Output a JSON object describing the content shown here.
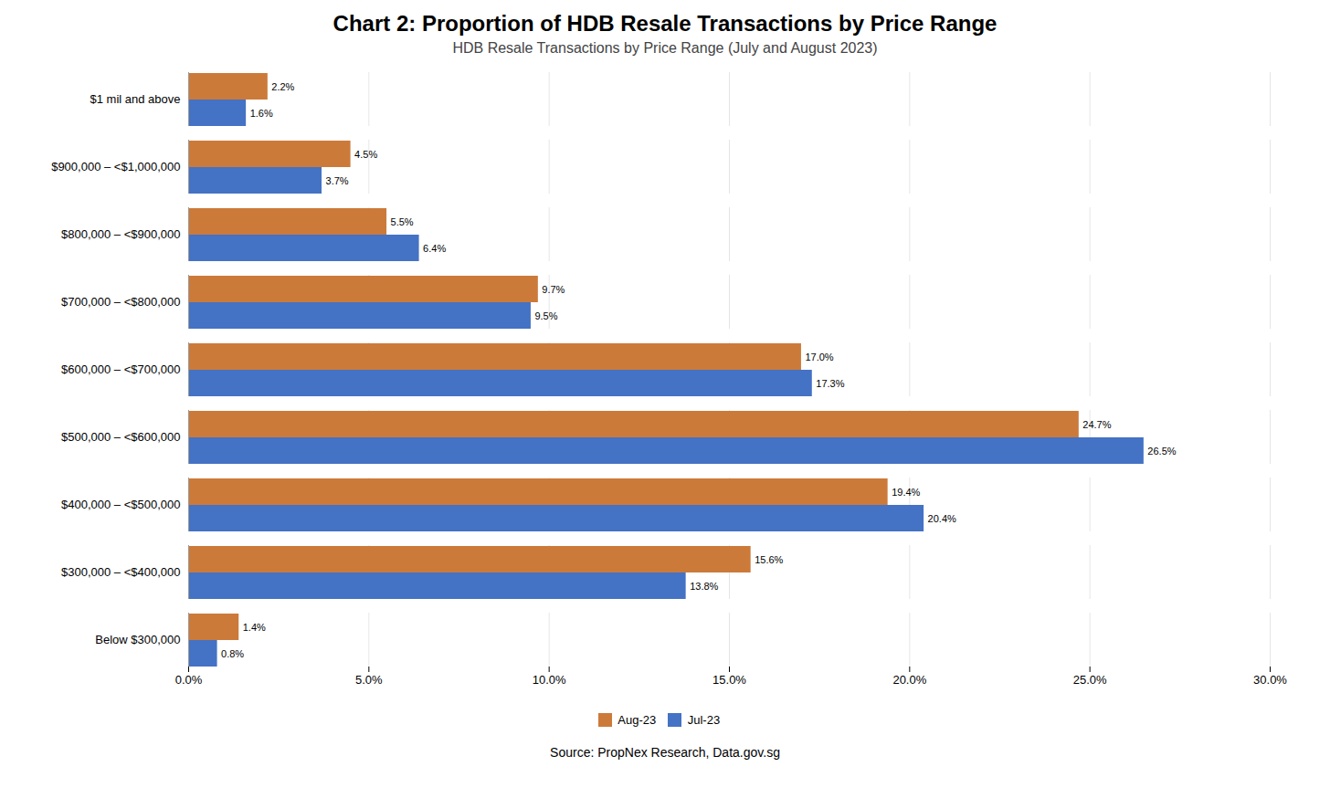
{
  "chart_data": {
    "type": "bar",
    "orientation": "horizontal",
    "title": "Chart 2: Proportion of HDB Resale Transactions by Price Range",
    "subtitle": "HDB Resale Transactions by Price Range (July and August 2023)",
    "source": "Source: PropNex Research, Data.gov.sg",
    "categories": [
      "Below $300,000",
      "$300,000 – <$400,000",
      "$400,000 – <$500,000",
      "$500,000 – <$600,000",
      "$600,000 – <$700,000",
      "$700,000 – <$800,000",
      "$800,000 – <$900,000",
      "$900,000 – <$1,000,000",
      "$1 mil and above"
    ],
    "series": [
      {
        "name": "Aug-23",
        "color": "#CC7A3A",
        "values": [
          1.4,
          15.6,
          19.4,
          24.7,
          17.0,
          9.7,
          5.5,
          4.5,
          2.2
        ],
        "value_labels": [
          "1.4%",
          "15.6%",
          "19.4%",
          "24.7%",
          "17.0%",
          "9.7%",
          "5.5%",
          "4.5%",
          "2.2%"
        ]
      },
      {
        "name": "Jul-23",
        "color": "#4472C4",
        "values": [
          0.8,
          13.8,
          20.4,
          26.5,
          17.3,
          9.5,
          6.4,
          3.7,
          1.6
        ],
        "value_labels": [
          "0.8%",
          "13.8%",
          "20.4%",
          "26.5%",
          "17.3%",
          "9.5%",
          "6.4%",
          "3.7%",
          "1.6%"
        ]
      }
    ],
    "xlim": [
      0,
      30
    ],
    "xticks": [
      {
        "value": 0,
        "label": "0.0%"
      },
      {
        "value": 5,
        "label": "5.0%"
      },
      {
        "value": 10,
        "label": "10.0%"
      },
      {
        "value": 15,
        "label": "15.0%"
      },
      {
        "value": 20,
        "label": "20.0%"
      },
      {
        "value": 25,
        "label": "25.0%"
      },
      {
        "value": 30,
        "label": "30.0%"
      }
    ],
    "grid": true,
    "legend": "bottom",
    "data_labels": true
  }
}
